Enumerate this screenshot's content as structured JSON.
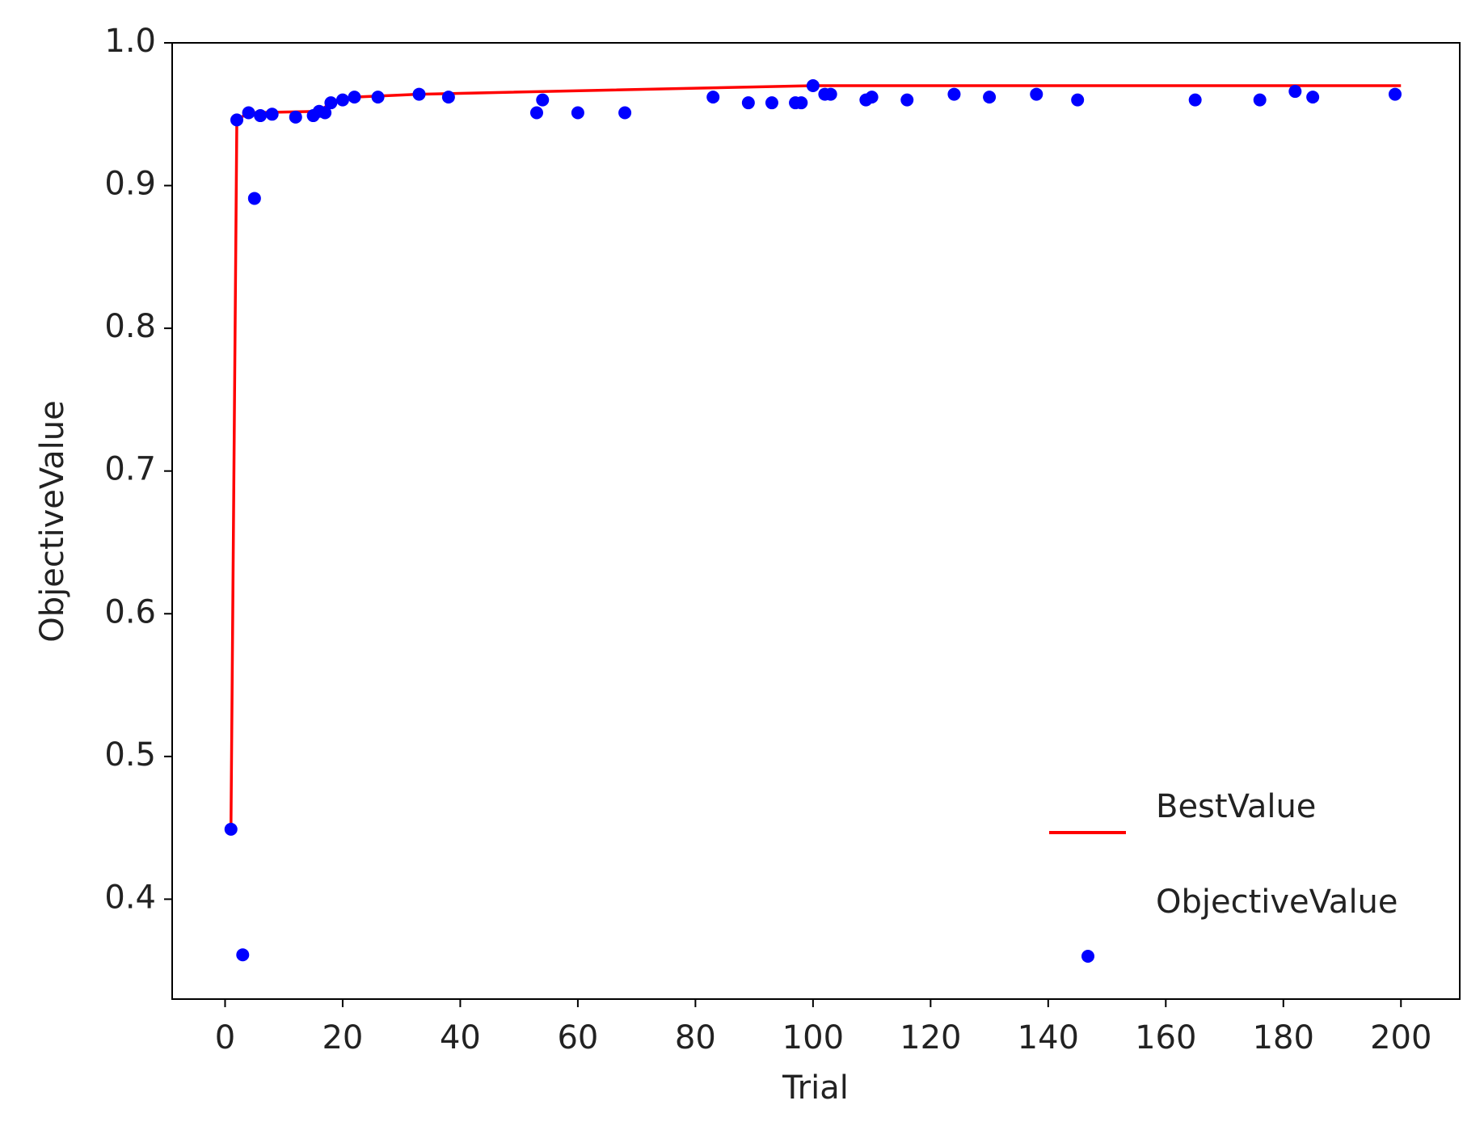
{
  "chart_data": {
    "type": "scatter",
    "xlabel": "Trial",
    "ylabel": "ObjectiveValue",
    "xlim": [
      -9,
      210
    ],
    "ylim": [
      0.33,
      1.0
    ],
    "xticks": [
      0,
      20,
      40,
      60,
      80,
      100,
      120,
      140,
      160,
      180,
      200
    ],
    "yticks": [
      0.4,
      0.5,
      0.6,
      0.7,
      0.8,
      0.9,
      {
        "value": 1,
        "label": "1.0"
      }
    ],
    "legend": "lower right",
    "series": [
      {
        "name": "BestValue",
        "type": "line",
        "color": "#ff0000",
        "x": [
          1,
          2,
          4,
          16,
          18,
          20,
          22,
          33,
          100,
          200
        ],
        "values": [
          0.45,
          0.946,
          0.951,
          0.952,
          0.958,
          0.96,
          0.962,
          0.964,
          0.97,
          0.97
        ]
      },
      {
        "name": "ObjectiveValue",
        "type": "scatter",
        "color": "#0000ff",
        "x": [
          1,
          2,
          3,
          4,
          5,
          6,
          8,
          12,
          15,
          16,
          17,
          18,
          20,
          22,
          26,
          33,
          38,
          53,
          54,
          60,
          68,
          83,
          89,
          93,
          97,
          98,
          100,
          102,
          103,
          109,
          110,
          116,
          124,
          130,
          138,
          145,
          165,
          176,
          182,
          185,
          199
        ],
        "values": [
          0.449,
          0.946,
          0.361,
          0.951,
          0.891,
          0.949,
          0.95,
          0.948,
          0.949,
          0.952,
          0.951,
          0.958,
          0.96,
          0.962,
          0.962,
          0.964,
          0.962,
          0.951,
          0.96,
          0.951,
          0.951,
          0.962,
          0.958,
          0.958,
          0.958,
          0.958,
          0.97,
          0.964,
          0.964,
          0.96,
          0.962,
          0.96,
          0.964,
          0.962,
          0.964,
          0.96,
          0.96,
          0.96,
          0.966,
          0.962,
          0.964
        ]
      }
    ]
  }
}
